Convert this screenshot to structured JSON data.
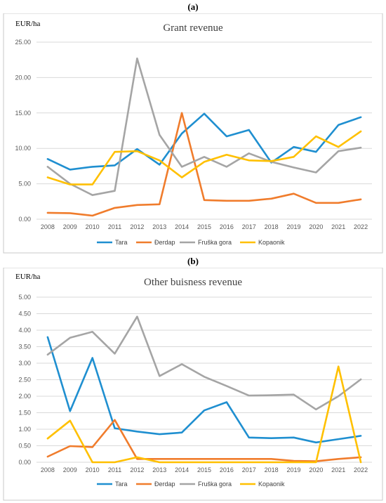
{
  "panels": {
    "a": "(a)",
    "b": "(b)"
  },
  "chart_data": [
    {
      "type": "line",
      "title": "Grant revenue",
      "ylabel": "EUR/ha",
      "xlabel": "",
      "ylim": [
        0,
        25
      ],
      "yticks": [
        "0.00",
        "5.00",
        "10.00",
        "15.00",
        "20.00",
        "25.00"
      ],
      "categories": [
        "2008",
        "2009",
        "2010",
        "2011",
        "2012",
        "2013",
        "2014",
        "2015",
        "2016",
        "2017",
        "2018",
        "2019",
        "2020",
        "2021",
        "2022"
      ],
      "grid": true,
      "legend_position": "bottom",
      "series": [
        {
          "name": "Tara",
          "color": "#1f8fd0",
          "values": [
            8.5,
            7.0,
            7.4,
            7.6,
            9.9,
            7.7,
            12.1,
            14.9,
            11.7,
            12.6,
            8.0,
            10.2,
            9.5,
            13.3,
            14.4
          ]
        },
        {
          "name": "Đerdap",
          "color": "#f07c2c",
          "values": [
            0.9,
            0.85,
            0.5,
            1.6,
            2.0,
            2.1,
            15.0,
            2.7,
            2.6,
            2.6,
            2.9,
            3.6,
            2.3,
            2.3,
            2.8
          ]
        },
        {
          "name": "Fruška gora",
          "color": "#a5a5a5",
          "values": [
            7.4,
            5.0,
            3.4,
            4.0,
            22.7,
            11.9,
            7.4,
            8.8,
            7.4,
            9.3,
            8.1,
            7.3,
            6.6,
            9.6,
            10.1
          ]
        },
        {
          "name": "Kopaonik",
          "color": "#ffc000",
          "values": [
            5.9,
            4.9,
            4.9,
            9.5,
            9.6,
            8.3,
            5.9,
            8.1,
            9.1,
            8.3,
            8.2,
            8.8,
            11.7,
            10.2,
            12.4
          ]
        }
      ]
    },
    {
      "type": "line",
      "title": "Other buisness revenue",
      "ylabel": "EUR/ha",
      "xlabel": "",
      "ylim": [
        0,
        5
      ],
      "yticks": [
        "0.00",
        "0.50",
        "1.00",
        "1.50",
        "2.00",
        "2.50",
        "3.00",
        "3.50",
        "4.00",
        "4.50",
        "5.00"
      ],
      "categories": [
        "2008",
        "2009",
        "2010",
        "2011",
        "2012",
        "2013",
        "2014",
        "2015",
        "2016",
        "2017",
        "2018",
        "2019",
        "2020",
        "2021",
        "2022"
      ],
      "grid": true,
      "legend_position": "bottom",
      "series": [
        {
          "name": "Tara",
          "color": "#1f8fd0",
          "values": [
            3.79,
            1.55,
            3.16,
            1.03,
            0.93,
            0.85,
            0.9,
            1.57,
            1.82,
            0.75,
            0.73,
            0.75,
            0.6,
            0.7,
            0.8
          ]
        },
        {
          "name": "Đerdap",
          "color": "#f07c2c",
          "values": [
            0.17,
            0.49,
            0.46,
            1.28,
            0.1,
            0.1,
            0.1,
            0.1,
            0.1,
            0.1,
            0.1,
            0.04,
            0.03,
            0.1,
            0.15
          ]
        },
        {
          "name": "Fruška gora",
          "color": "#a5a5a5",
          "values": [
            3.26,
            3.77,
            3.95,
            3.29,
            4.41,
            2.61,
            2.97,
            2.59,
            2.31,
            2.02,
            2.03,
            2.05,
            1.6,
            2.0,
            2.51
          ]
        },
        {
          "name": "Kopaonik",
          "color": "#ffc000",
          "values": [
            0.72,
            1.26,
            0.0,
            0.0,
            0.15,
            0.0,
            0.0,
            0.0,
            0.0,
            0.0,
            0.0,
            0.0,
            0.0,
            2.9,
            0.0
          ]
        }
      ]
    }
  ]
}
